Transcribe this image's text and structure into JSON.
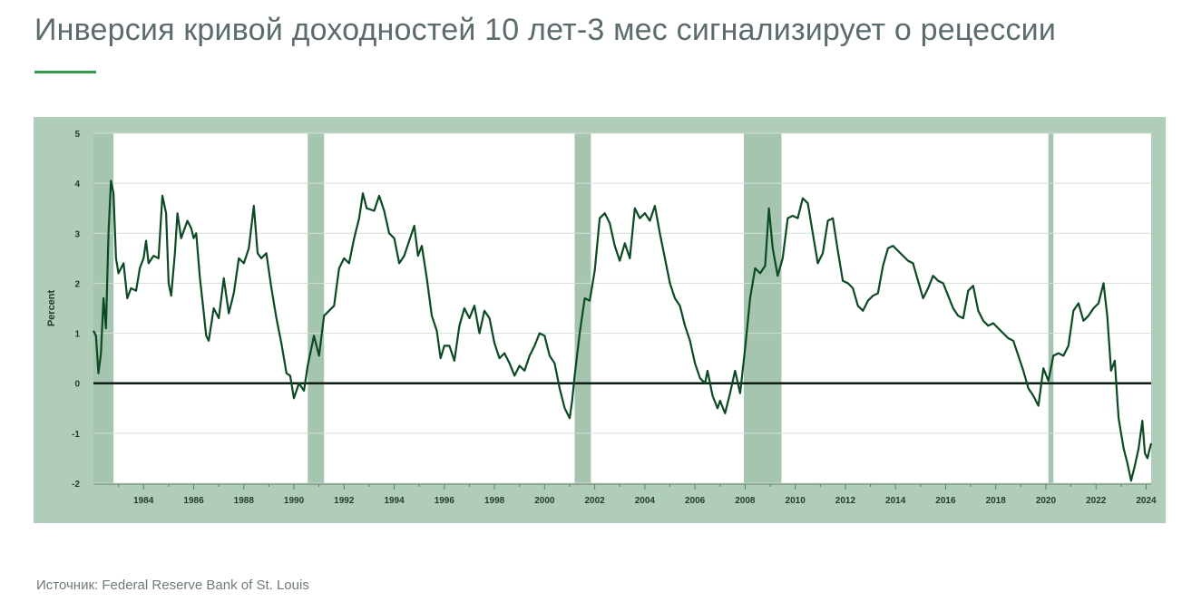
{
  "page": {
    "title": "Инверсия кривой доходностей 10 лет-3 мес сигнализирует о рецессии",
    "source": "Источник: Federal Reserve Bank of St. Louis",
    "accent_color": "#2e9a4a"
  },
  "chart_data": {
    "type": "line",
    "title": "",
    "xlabel": "",
    "ylabel": "Percent",
    "xlim": [
      1982.0,
      2024.2
    ],
    "ylim": [
      -2,
      5
    ],
    "y_ticks": [
      "5",
      "4",
      "3",
      "2",
      "1",
      "0",
      "-1",
      "-2"
    ],
    "x_ticks": [
      "1984",
      "1986",
      "1988",
      "1990",
      "1992",
      "1994",
      "1996",
      "1998",
      "2000",
      "2002",
      "2004",
      "2006",
      "2008",
      "2010",
      "2012",
      "2014",
      "2016",
      "2018",
      "2020",
      "2022",
      "2024"
    ],
    "grid": true,
    "zero_line": 0,
    "colors": {
      "line": "#0b4a22",
      "recession": "#a6c5b0",
      "plot_bg": "#ffffff",
      "frame": "#b0cdb9"
    },
    "recessions": [
      {
        "start": 1982.0,
        "end": 1982.8
      },
      {
        "start": 1990.55,
        "end": 1991.2
      },
      {
        "start": 2001.2,
        "end": 2001.85
      },
      {
        "start": 2007.95,
        "end": 2009.45
      },
      {
        "start": 2020.1,
        "end": 2020.3
      }
    ],
    "series": [
      {
        "values": [
          [
            1982.0,
            1.05
          ],
          [
            1982.1,
            0.95
          ],
          [
            1982.2,
            0.2
          ],
          [
            1982.3,
            0.6
          ],
          [
            1982.4,
            1.7
          ],
          [
            1982.5,
            1.1
          ],
          [
            1982.6,
            3.0
          ],
          [
            1982.7,
            4.05
          ],
          [
            1982.8,
            3.8
          ],
          [
            1982.9,
            2.5
          ],
          [
            1983.0,
            2.2
          ],
          [
            1983.2,
            2.4
          ],
          [
            1983.35,
            1.7
          ],
          [
            1983.5,
            1.9
          ],
          [
            1983.7,
            1.85
          ],
          [
            1983.85,
            2.3
          ],
          [
            1984.0,
            2.5
          ],
          [
            1984.1,
            2.85
          ],
          [
            1984.2,
            2.4
          ],
          [
            1984.4,
            2.55
          ],
          [
            1984.6,
            2.5
          ],
          [
            1984.75,
            3.75
          ],
          [
            1984.9,
            3.4
          ],
          [
            1985.0,
            2.0
          ],
          [
            1985.1,
            1.75
          ],
          [
            1985.25,
            2.6
          ],
          [
            1985.35,
            3.4
          ],
          [
            1985.5,
            2.9
          ],
          [
            1985.75,
            3.25
          ],
          [
            1985.9,
            3.1
          ],
          [
            1986.0,
            2.9
          ],
          [
            1986.1,
            3.0
          ],
          [
            1986.25,
            2.1
          ],
          [
            1986.35,
            1.65
          ],
          [
            1986.5,
            0.95
          ],
          [
            1986.6,
            0.85
          ],
          [
            1986.8,
            1.5
          ],
          [
            1987.0,
            1.3
          ],
          [
            1987.2,
            2.1
          ],
          [
            1987.4,
            1.4
          ],
          [
            1987.6,
            1.8
          ],
          [
            1987.8,
            2.5
          ],
          [
            1988.0,
            2.4
          ],
          [
            1988.2,
            2.7
          ],
          [
            1988.4,
            3.55
          ],
          [
            1988.55,
            2.6
          ],
          [
            1988.7,
            2.5
          ],
          [
            1988.9,
            2.6
          ],
          [
            1989.1,
            1.9
          ],
          [
            1989.3,
            1.3
          ],
          [
            1989.5,
            0.8
          ],
          [
            1989.7,
            0.2
          ],
          [
            1989.85,
            0.15
          ],
          [
            1990.0,
            -0.3
          ],
          [
            1990.2,
            0.0
          ],
          [
            1990.4,
            -0.15
          ],
          [
            1990.55,
            0.35
          ],
          [
            1990.8,
            0.95
          ],
          [
            1991.0,
            0.55
          ],
          [
            1991.2,
            1.35
          ],
          [
            1991.4,
            1.45
          ],
          [
            1991.6,
            1.55
          ],
          [
            1991.8,
            2.3
          ],
          [
            1992.0,
            2.5
          ],
          [
            1992.2,
            2.4
          ],
          [
            1992.4,
            2.9
          ],
          [
            1992.6,
            3.3
          ],
          [
            1992.75,
            3.8
          ],
          [
            1992.9,
            3.5
          ],
          [
            1993.2,
            3.45
          ],
          [
            1993.4,
            3.75
          ],
          [
            1993.6,
            3.45
          ],
          [
            1993.8,
            3.0
          ],
          [
            1994.0,
            2.9
          ],
          [
            1994.2,
            2.4
          ],
          [
            1994.4,
            2.55
          ],
          [
            1994.6,
            2.85
          ],
          [
            1994.8,
            3.15
          ],
          [
            1994.95,
            2.55
          ],
          [
            1995.1,
            2.75
          ],
          [
            1995.3,
            2.1
          ],
          [
            1995.5,
            1.35
          ],
          [
            1995.7,
            1.05
          ],
          [
            1995.85,
            0.5
          ],
          [
            1996.0,
            0.75
          ],
          [
            1996.2,
            0.75
          ],
          [
            1996.4,
            0.45
          ],
          [
            1996.6,
            1.15
          ],
          [
            1996.8,
            1.5
          ],
          [
            1997.0,
            1.3
          ],
          [
            1997.2,
            1.55
          ],
          [
            1997.4,
            1.0
          ],
          [
            1997.6,
            1.45
          ],
          [
            1997.8,
            1.3
          ],
          [
            1998.0,
            0.8
          ],
          [
            1998.2,
            0.5
          ],
          [
            1998.4,
            0.6
          ],
          [
            1998.6,
            0.4
          ],
          [
            1998.8,
            0.15
          ],
          [
            1999.0,
            0.35
          ],
          [
            1999.2,
            0.25
          ],
          [
            1999.4,
            0.55
          ],
          [
            1999.6,
            0.75
          ],
          [
            1999.8,
            1.0
          ],
          [
            2000.0,
            0.95
          ],
          [
            2000.2,
            0.55
          ],
          [
            2000.4,
            0.4
          ],
          [
            2000.6,
            -0.1
          ],
          [
            2000.8,
            -0.5
          ],
          [
            2001.0,
            -0.7
          ],
          [
            2001.1,
            -0.35
          ],
          [
            2001.2,
            0.15
          ],
          [
            2001.4,
            1.0
          ],
          [
            2001.6,
            1.7
          ],
          [
            2001.8,
            1.65
          ],
          [
            2002.0,
            2.25
          ],
          [
            2002.2,
            3.3
          ],
          [
            2002.4,
            3.4
          ],
          [
            2002.6,
            3.2
          ],
          [
            2002.8,
            2.75
          ],
          [
            2003.0,
            2.45
          ],
          [
            2003.2,
            2.8
          ],
          [
            2003.4,
            2.5
          ],
          [
            2003.6,
            3.5
          ],
          [
            2003.8,
            3.3
          ],
          [
            2004.0,
            3.4
          ],
          [
            2004.2,
            3.25
          ],
          [
            2004.4,
            3.55
          ],
          [
            2004.6,
            3.0
          ],
          [
            2004.8,
            2.5
          ],
          [
            2005.0,
            2.0
          ],
          [
            2005.2,
            1.7
          ],
          [
            2005.4,
            1.55
          ],
          [
            2005.6,
            1.15
          ],
          [
            2005.8,
            0.85
          ],
          [
            2006.0,
            0.4
          ],
          [
            2006.2,
            0.1
          ],
          [
            2006.4,
            0.0
          ],
          [
            2006.5,
            0.25
          ],
          [
            2006.7,
            -0.25
          ],
          [
            2006.9,
            -0.5
          ],
          [
            2007.0,
            -0.35
          ],
          [
            2007.2,
            -0.6
          ],
          [
            2007.4,
            -0.2
          ],
          [
            2007.6,
            0.25
          ],
          [
            2007.8,
            -0.2
          ],
          [
            2008.0,
            0.7
          ],
          [
            2008.2,
            1.7
          ],
          [
            2008.4,
            2.3
          ],
          [
            2008.6,
            2.2
          ],
          [
            2008.8,
            2.35
          ],
          [
            2008.95,
            3.5
          ],
          [
            2009.1,
            2.7
          ],
          [
            2009.3,
            2.15
          ],
          [
            2009.5,
            2.5
          ],
          [
            2009.7,
            3.3
          ],
          [
            2009.9,
            3.35
          ],
          [
            2010.1,
            3.3
          ],
          [
            2010.3,
            3.7
          ],
          [
            2010.5,
            3.6
          ],
          [
            2010.7,
            3.0
          ],
          [
            2010.9,
            2.4
          ],
          [
            2011.1,
            2.6
          ],
          [
            2011.3,
            3.25
          ],
          [
            2011.5,
            3.3
          ],
          [
            2011.7,
            2.65
          ],
          [
            2011.9,
            2.05
          ],
          [
            2012.1,
            2.0
          ],
          [
            2012.3,
            1.9
          ],
          [
            2012.5,
            1.55
          ],
          [
            2012.7,
            1.45
          ],
          [
            2012.9,
            1.65
          ],
          [
            2013.1,
            1.75
          ],
          [
            2013.3,
            1.8
          ],
          [
            2013.5,
            2.35
          ],
          [
            2013.7,
            2.7
          ],
          [
            2013.9,
            2.75
          ],
          [
            2014.1,
            2.65
          ],
          [
            2014.3,
            2.55
          ],
          [
            2014.5,
            2.45
          ],
          [
            2014.7,
            2.4
          ],
          [
            2014.9,
            2.05
          ],
          [
            2015.1,
            1.7
          ],
          [
            2015.3,
            1.9
          ],
          [
            2015.5,
            2.15
          ],
          [
            2015.7,
            2.05
          ],
          [
            2015.9,
            2.0
          ],
          [
            2016.1,
            1.75
          ],
          [
            2016.3,
            1.5
          ],
          [
            2016.5,
            1.35
          ],
          [
            2016.7,
            1.3
          ],
          [
            2016.9,
            1.85
          ],
          [
            2017.1,
            1.95
          ],
          [
            2017.3,
            1.45
          ],
          [
            2017.5,
            1.25
          ],
          [
            2017.7,
            1.15
          ],
          [
            2017.9,
            1.2
          ],
          [
            2018.1,
            1.1
          ],
          [
            2018.3,
            1.0
          ],
          [
            2018.5,
            0.9
          ],
          [
            2018.7,
            0.85
          ],
          [
            2018.9,
            0.55
          ],
          [
            2019.1,
            0.25
          ],
          [
            2019.3,
            -0.1
          ],
          [
            2019.5,
            -0.25
          ],
          [
            2019.7,
            -0.45
          ],
          [
            2019.9,
            0.3
          ],
          [
            2020.1,
            0.05
          ],
          [
            2020.3,
            0.55
          ],
          [
            2020.5,
            0.6
          ],
          [
            2020.7,
            0.55
          ],
          [
            2020.9,
            0.75
          ],
          [
            2021.1,
            1.45
          ],
          [
            2021.3,
            1.6
          ],
          [
            2021.5,
            1.25
          ],
          [
            2021.7,
            1.35
          ],
          [
            2021.9,
            1.5
          ],
          [
            2022.1,
            1.6
          ],
          [
            2022.3,
            2.0
          ],
          [
            2022.45,
            1.35
          ],
          [
            2022.6,
            0.25
          ],
          [
            2022.75,
            0.45
          ],
          [
            2022.9,
            -0.7
          ],
          [
            2023.1,
            -1.3
          ],
          [
            2023.25,
            -1.6
          ],
          [
            2023.4,
            -1.95
          ],
          [
            2023.55,
            -1.65
          ],
          [
            2023.7,
            -1.3
          ],
          [
            2023.85,
            -0.75
          ],
          [
            2023.95,
            -1.4
          ],
          [
            2024.05,
            -1.5
          ],
          [
            2024.2,
            -1.2
          ]
        ]
      }
    ]
  }
}
